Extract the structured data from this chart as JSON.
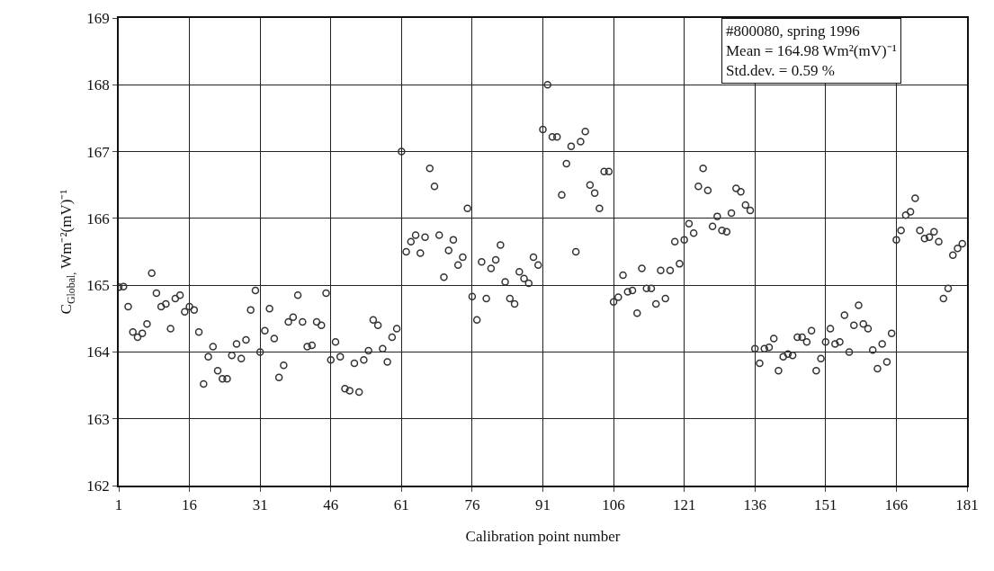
{
  "chart_data": {
    "type": "scatter",
    "xlabel": "Calibration point number",
    "ylabel": "C$_{Global,}$ Wm⁻²(mV)⁻¹",
    "annotations": [
      "#800080, spring 1996",
      "Mean = 164.98 Wm²(mV)⁻¹",
      "Std.dev. = 0.59 %"
    ],
    "marker": "circle",
    "grid": true,
    "xlim": [
      1,
      181
    ],
    "xticks": [
      1,
      16,
      31,
      46,
      61,
      76,
      91,
      106,
      121,
      136,
      151,
      166,
      181
    ],
    "ylim": [
      162,
      169
    ],
    "yticks": [
      162,
      163,
      164,
      165,
      166,
      167,
      168,
      169
    ],
    "x": [
      1,
      2,
      3,
      4,
      5,
      6,
      7,
      8,
      9,
      10,
      11,
      12,
      13,
      14,
      15,
      16,
      17,
      18,
      19,
      20,
      21,
      22,
      23,
      24,
      25,
      26,
      27,
      28,
      29,
      30,
      31,
      32,
      33,
      34,
      35,
      36,
      37,
      38,
      39,
      40,
      41,
      42,
      43,
      44,
      45,
      46,
      47,
      48,
      49,
      50,
      51,
      52,
      53,
      54,
      55,
      56,
      57,
      58,
      59,
      60,
      61,
      62,
      63,
      64,
      65,
      66,
      67,
      68,
      69,
      70,
      71,
      72,
      73,
      74,
      75,
      76,
      77,
      78,
      79,
      80,
      81,
      82,
      83,
      84,
      85,
      86,
      87,
      88,
      89,
      90,
      91,
      92,
      93,
      94,
      95,
      96,
      97,
      98,
      99,
      100,
      101,
      102,
      103,
      104,
      105,
      106,
      107,
      108,
      109,
      110,
      111,
      112,
      113,
      114,
      115,
      116,
      117,
      118,
      119,
      120,
      121,
      122,
      123,
      124,
      125,
      126,
      127,
      128,
      129,
      130,
      131,
      132,
      133,
      134,
      135,
      136,
      137,
      138,
      139,
      140,
      141,
      142,
      143,
      144,
      145,
      146,
      147,
      148,
      149,
      150,
      151,
      152,
      153,
      154,
      155,
      156,
      157,
      158,
      159,
      160,
      161,
      162,
      163,
      164,
      165,
      166,
      167,
      168,
      169,
      170,
      171,
      172,
      173,
      174,
      175,
      176,
      177,
      178,
      179,
      180
    ],
    "series": [
      {
        "color": "#333333",
        "values": [
          164.97,
          164.98,
          164.68,
          164.3,
          164.22,
          164.28,
          164.42,
          165.18,
          164.88,
          164.68,
          164.72,
          164.35,
          164.8,
          164.85,
          164.6,
          164.68,
          164.63,
          164.3,
          163.52,
          163.93,
          164.08,
          163.72,
          163.6,
          163.6,
          163.95,
          164.12,
          163.9,
          164.18,
          164.63,
          164.92,
          164.0,
          164.32,
          164.65,
          164.2,
          163.62,
          163.8,
          164.45,
          164.52,
          164.85,
          164.45,
          164.08,
          164.1,
          164.45,
          164.4,
          164.88,
          163.88,
          164.15,
          163.93,
          163.45,
          163.42,
          163.83,
          163.4,
          163.88,
          164.02,
          164.48,
          164.4,
          164.05,
          163.85,
          164.22,
          164.35,
          167.0,
          165.5,
          165.65,
          165.75,
          165.48,
          165.72,
          166.75,
          166.48,
          165.75,
          165.12,
          165.52,
          165.68,
          165.3,
          165.42,
          166.15,
          164.83,
          164.48,
          165.35,
          164.8,
          165.25,
          165.38,
          165.6,
          165.05,
          164.8,
          164.72,
          165.2,
          165.1,
          165.03,
          165.42,
          165.3,
          167.33,
          168.0,
          167.22,
          167.22,
          166.35,
          166.82,
          167.08,
          165.5,
          167.15,
          167.3,
          166.5,
          166.38,
          166.15,
          166.7,
          166.7,
          164.75,
          164.82,
          165.15,
          164.9,
          164.92,
          164.58,
          165.25,
          164.95,
          164.95,
          164.72,
          165.22,
          164.8,
          165.22,
          165.65,
          165.32,
          165.68,
          165.92,
          165.78,
          166.48,
          166.75,
          166.42,
          165.88,
          166.03,
          165.82,
          165.8,
          166.08,
          166.45,
          166.4,
          166.2,
          166.12,
          164.05,
          163.83,
          164.05,
          164.07,
          164.2,
          163.72,
          163.93,
          163.97,
          163.95,
          164.22,
          164.22,
          164.15,
          164.32,
          163.72,
          163.9,
          164.15,
          164.35,
          164.12,
          164.15,
          164.55,
          164.0,
          164.4,
          164.7,
          164.42,
          164.35,
          164.03,
          163.75,
          164.12,
          163.85,
          164.28,
          165.68,
          165.82,
          166.05,
          166.1,
          166.3,
          165.82,
          165.7,
          165.72,
          165.8,
          165.65,
          164.8,
          164.95,
          165.45,
          165.55,
          165.62
        ]
      }
    ]
  }
}
